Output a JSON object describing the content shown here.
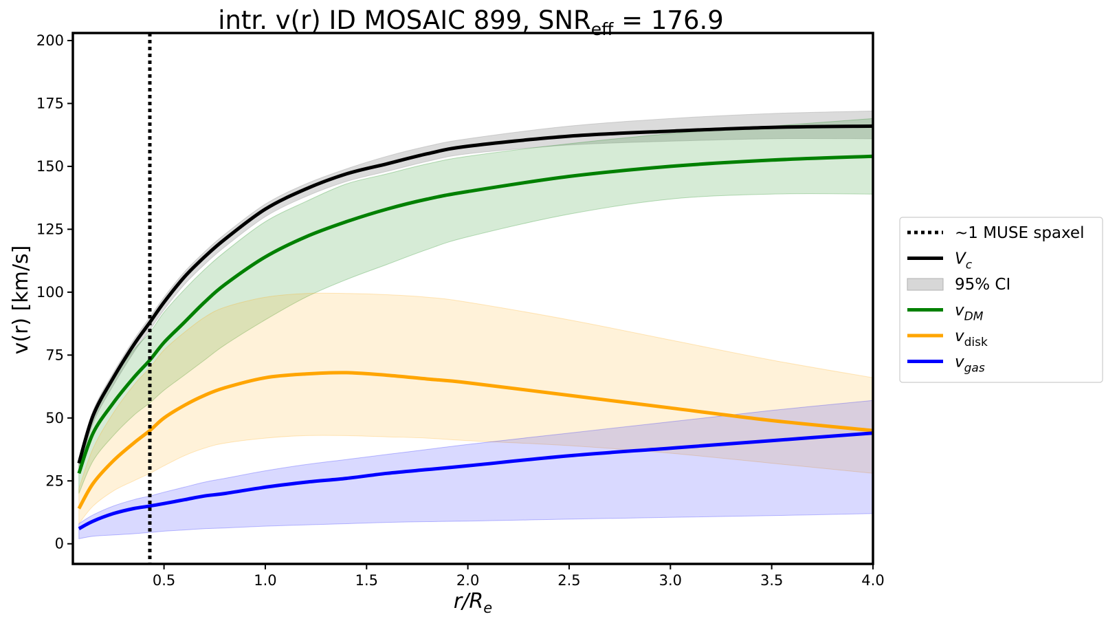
{
  "chart_data": {
    "type": "line",
    "title": {
      "main": "intr. v(r) ID MOSAIC 899, SNR",
      "sub": "eff",
      "tail": " = 176.9"
    },
    "xlabel": {
      "main": "r/R",
      "sub": "e"
    },
    "ylabel": "v(r) [km/s]",
    "xlim": [
      0.05,
      4.0
    ],
    "ylim": [
      -8,
      203
    ],
    "xticks": [
      0.5,
      1.0,
      1.5,
      2.0,
      2.5,
      3.0,
      3.5,
      4.0
    ],
    "xtick_labels": [
      "0.5",
      "1.0",
      "1.5",
      "2.0",
      "2.5",
      "3.0",
      "3.5",
      "4.0"
    ],
    "yticks": [
      0,
      25,
      50,
      75,
      100,
      125,
      150,
      175,
      200
    ],
    "ytick_labels": [
      "0",
      "25",
      "50",
      "75",
      "100",
      "125",
      "150",
      "175",
      "200"
    ],
    "vline": {
      "x": 0.43,
      "label": "~1 MUSE spaxel"
    },
    "x": [
      0.08,
      0.15,
      0.25,
      0.35,
      0.43,
      0.5,
      0.6,
      0.7,
      0.8,
      1.0,
      1.2,
      1.4,
      1.6,
      1.8,
      2.0,
      2.5,
      3.0,
      3.5,
      4.0
    ],
    "series": [
      {
        "name": "v_c",
        "label_main": "V",
        "label_sub": "c",
        "sub_italic": true,
        "color": "#000000",
        "band_color": "#b0b0b0",
        "band_opacity": 0.45,
        "values": [
          32,
          51,
          66,
          79,
          88,
          96,
          106,
          114,
          121,
          133,
          141,
          147,
          151,
          155,
          158,
          162,
          164,
          165.5,
          166
        ],
        "lower": [
          29,
          48,
          63,
          76,
          85,
          93,
          103,
          111,
          118,
          130,
          138,
          144,
          148,
          152,
          155,
          158.5,
          160,
          161,
          161
        ],
        "upper": [
          34,
          53,
          68,
          81,
          90,
          98,
          108,
          116,
          123,
          135,
          143,
          149,
          154,
          158,
          161,
          166,
          169,
          171,
          172
        ]
      },
      {
        "name": "v_dm",
        "label_main": "v",
        "label_sub": "DM",
        "sub_italic": true,
        "color": "#008000",
        "band_color": "#008000",
        "band_opacity": 0.16,
        "values": [
          28,
          44,
          56,
          66,
          73,
          80,
          88,
          96,
          103,
          114,
          122,
          128,
          133,
          137,
          140,
          146,
          150,
          152.5,
          154
        ],
        "lower": [
          20,
          33,
          43,
          51,
          56,
          61,
          67,
          73,
          79,
          89,
          98,
          105,
          111,
          117,
          122,
          131,
          137,
          139,
          139
        ],
        "upper": [
          34,
          52,
          66,
          77,
          84,
          92,
          101,
          109,
          116,
          128,
          136,
          143,
          147,
          151,
          154,
          159,
          163,
          166,
          169
        ]
      },
      {
        "name": "v_disk",
        "label_main": "v",
        "label_sub": "disk",
        "sub_italic": false,
        "color": "#ffa500",
        "band_color": "#ffa500",
        "band_opacity": 0.15,
        "values": [
          14,
          24,
          33,
          40,
          45,
          50,
          55,
          59,
          62,
          66,
          67.5,
          68,
          67,
          65.5,
          64,
          59,
          54,
          49,
          45
        ],
        "lower": [
          8,
          15,
          21,
          25,
          28,
          31,
          35,
          38,
          40,
          42,
          43,
          43,
          42.5,
          42,
          41,
          39,
          36,
          32,
          28
        ],
        "upper": [
          22,
          38,
          52,
          63,
          70,
          77,
          84,
          90,
          94,
          98,
          99.5,
          99.5,
          99,
          98,
          96,
          89,
          81,
          73,
          66
        ]
      },
      {
        "name": "v_gas",
        "label_main": "v",
        "label_sub": "gas",
        "sub_italic": true,
        "color": "#0000ff",
        "band_color": "#0000ff",
        "band_opacity": 0.15,
        "values": [
          6,
          9,
          12,
          14,
          15,
          16,
          17.5,
          19,
          20,
          22.5,
          24.5,
          26,
          28,
          29.5,
          31,
          35,
          38,
          41,
          44
        ],
        "lower": [
          2,
          3,
          3.5,
          4,
          4.5,
          5,
          5.5,
          6,
          6.3,
          7,
          7.5,
          8,
          8.5,
          8.8,
          9,
          9.8,
          10.5,
          11.2,
          12
        ],
        "upper": [
          8,
          11.5,
          15,
          17.5,
          19,
          20.5,
          22.5,
          24.5,
          26,
          29,
          31.5,
          33.5,
          35.5,
          37.5,
          39.5,
          44,
          48.5,
          53,
          57
        ]
      }
    ],
    "legend": {
      "position": "center-right",
      "entries": [
        {
          "kind": "vline",
          "text": "~1 MUSE spaxel"
        },
        {
          "kind": "series",
          "ref": 0
        },
        {
          "kind": "band",
          "text": "95% CI"
        },
        {
          "kind": "series",
          "ref": 1
        },
        {
          "kind": "series",
          "ref": 2
        },
        {
          "kind": "series",
          "ref": 3
        }
      ]
    }
  }
}
